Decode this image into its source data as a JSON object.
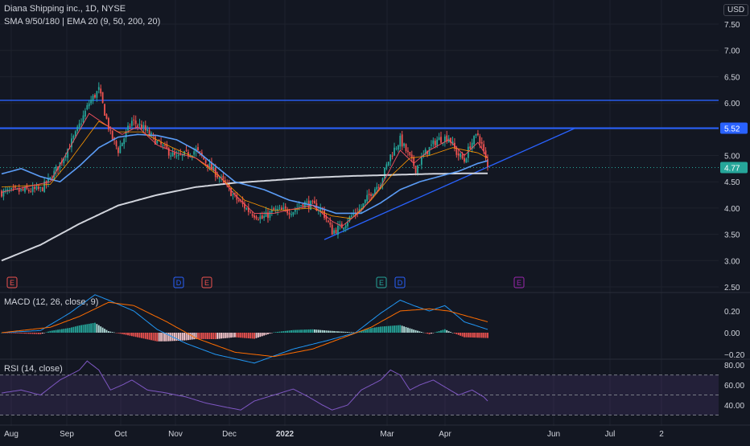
{
  "colors": {
    "background": "#131722",
    "text": "#d1d4dc",
    "grid": "#1e222d",
    "bull": "#26a69a",
    "bear": "#ef5350",
    "sma9": "#f7525f",
    "sma50": "#5b9cf6",
    "sma180": "#d1d4dc",
    "ema20": "#ff9800",
    "level_line": "#2962ff",
    "macd": "#2196f3",
    "signal": "#ff6d00",
    "rsi": "#7e57c2"
  },
  "header": {
    "title": "Diana Shipping inc., 1D, NYSE",
    "indicators": "SMA 9/50/180 | EMA 20 (9, 50, 200, 20)",
    "currency": "USD"
  },
  "price_labels": {
    "resistance": "5.52",
    "last": "4.77"
  },
  "x_labels": [
    "Aug",
    "Sep",
    "Oct",
    "Nov",
    "Dec",
    "2022",
    "Mar",
    "Apr",
    "Jun",
    "Jul",
    "2"
  ],
  "events": [
    {
      "label": "E",
      "color": "#ef5350"
    },
    {
      "label": "D",
      "color": "#2962ff"
    },
    {
      "label": "E",
      "color": "#ef5350"
    },
    {
      "label": "E",
      "color": "#26a69a"
    },
    {
      "label": "D",
      "color": "#2962ff"
    },
    {
      "label": "E",
      "color": "#9c27b0"
    }
  ],
  "macd_panel": {
    "title": "MACD (12, 26, close, 9)"
  },
  "rsi_panel": {
    "title": "RSI (14, close)"
  },
  "chart_data": [
    {
      "type": "candlestick",
      "title": "Diana Shipping inc., 1D, NYSE",
      "ylim": [
        2.5,
        7.5
      ],
      "yticks": [
        "7.50",
        "7.00",
        "6.50",
        "6.00",
        "5.50",
        "5.00",
        "4.50",
        "4.00",
        "3.50",
        "3.00",
        "2.50"
      ],
      "ytick_values": [
        7.5,
        7.0,
        6.5,
        6.0,
        5.5,
        5.0,
        4.5,
        4.0,
        3.5,
        3.0,
        2.5
      ],
      "close_anchors": [
        [
          0,
          4.3
        ],
        [
          20,
          4.35
        ],
        [
          25,
          4.55
        ],
        [
          30,
          4.85
        ],
        [
          38,
          5.4
        ],
        [
          45,
          6.0
        ],
        [
          50,
          6.25
        ],
        [
          56,
          5.4
        ],
        [
          60,
          5.1
        ],
        [
          67,
          5.65
        ],
        [
          72,
          5.55
        ],
        [
          80,
          5.25
        ],
        [
          90,
          4.95
        ],
        [
          100,
          5.1
        ],
        [
          108,
          4.75
        ],
        [
          115,
          4.45
        ],
        [
          120,
          4.2
        ],
        [
          127,
          3.95
        ],
        [
          134,
          3.8
        ],
        [
          140,
          3.95
        ],
        [
          150,
          3.95
        ],
        [
          155,
          4.1
        ],
        [
          160,
          4.05
        ],
        [
          165,
          3.95
        ],
        [
          170,
          3.55
        ],
        [
          175,
          3.65
        ],
        [
          180,
          3.85
        ],
        [
          185,
          4.0
        ],
        [
          190,
          4.3
        ],
        [
          195,
          4.5
        ],
        [
          200,
          5.0
        ],
        [
          205,
          5.3
        ],
        [
          210,
          4.95
        ],
        [
          213,
          4.75
        ],
        [
          218,
          5.05
        ],
        [
          224,
          5.3
        ],
        [
          230,
          5.35
        ],
        [
          234,
          5.05
        ],
        [
          238,
          4.9
        ],
        [
          241,
          5.2
        ],
        [
          245,
          5.4
        ],
        [
          247,
          5.2
        ],
        [
          250,
          4.77
        ]
      ],
      "sma9_anchors": [
        [
          0,
          4.3
        ],
        [
          25,
          4.5
        ],
        [
          32,
          4.95
        ],
        [
          45,
          5.8
        ],
        [
          55,
          5.55
        ],
        [
          62,
          5.4
        ],
        [
          70,
          5.55
        ],
        [
          80,
          5.2
        ],
        [
          90,
          5.05
        ],
        [
          100,
          4.95
        ],
        [
          110,
          4.7
        ],
        [
          120,
          4.25
        ],
        [
          130,
          3.9
        ],
        [
          140,
          3.9
        ],
        [
          150,
          3.98
        ],
        [
          160,
          4.05
        ],
        [
          170,
          3.75
        ],
        [
          175,
          3.65
        ],
        [
          185,
          3.95
        ],
        [
          195,
          4.4
        ],
        [
          205,
          5.1
        ],
        [
          212,
          4.85
        ],
        [
          220,
          5.1
        ],
        [
          230,
          5.3
        ],
        [
          238,
          5.0
        ],
        [
          245,
          5.25
        ],
        [
          250,
          4.95
        ]
      ],
      "ema20_anchors": [
        [
          0,
          4.4
        ],
        [
          25,
          4.45
        ],
        [
          35,
          4.9
        ],
        [
          50,
          5.65
        ],
        [
          60,
          5.45
        ],
        [
          72,
          5.45
        ],
        [
          85,
          5.2
        ],
        [
          100,
          4.95
        ],
        [
          112,
          4.6
        ],
        [
          125,
          4.15
        ],
        [
          140,
          3.95
        ],
        [
          160,
          4.0
        ],
        [
          170,
          3.85
        ],
        [
          180,
          3.8
        ],
        [
          190,
          4.15
        ],
        [
          200,
          4.6
        ],
        [
          210,
          4.95
        ],
        [
          220,
          5.0
        ],
        [
          232,
          5.15
        ],
        [
          245,
          5.05
        ],
        [
          250,
          4.95
        ]
      ],
      "sma50_anchors": [
        [
          0,
          4.65
        ],
        [
          10,
          4.75
        ],
        [
          20,
          4.6
        ],
        [
          30,
          4.5
        ],
        [
          40,
          4.8
        ],
        [
          50,
          5.15
        ],
        [
          60,
          5.35
        ],
        [
          70,
          5.4
        ],
        [
          80,
          5.38
        ],
        [
          90,
          5.3
        ],
        [
          100,
          5.1
        ],
        [
          110,
          4.8
        ],
        [
          120,
          4.5
        ],
        [
          135,
          4.35
        ],
        [
          148,
          4.15
        ],
        [
          160,
          4.05
        ],
        [
          172,
          3.9
        ],
        [
          185,
          3.9
        ],
        [
          195,
          4.1
        ],
        [
          205,
          4.35
        ],
        [
          215,
          4.5
        ],
        [
          225,
          4.6
        ],
        [
          235,
          4.7
        ],
        [
          245,
          4.85
        ],
        [
          250,
          4.9
        ]
      ],
      "sma180_anchors": [
        [
          0,
          3.0
        ],
        [
          20,
          3.3
        ],
        [
          40,
          3.7
        ],
        [
          60,
          4.05
        ],
        [
          80,
          4.25
        ],
        [
          100,
          4.4
        ],
        [
          120,
          4.48
        ],
        [
          140,
          4.53
        ],
        [
          160,
          4.58
        ],
        [
          180,
          4.61
        ],
        [
          200,
          4.63
        ],
        [
          220,
          4.65
        ],
        [
          240,
          4.66
        ],
        [
          250,
          4.66
        ]
      ],
      "horizontal_levels": [
        6.05,
        5.52
      ],
      "trendline": {
        "from": [
          166,
          3.4
        ],
        "to": [
          295,
          5.52
        ]
      },
      "last_price": 4.77,
      "bars": 251
    },
    {
      "type": "line",
      "title": "MACD (12, 26, close, 9)",
      "ylim": [
        -0.2,
        0.35
      ],
      "yticks": [
        "0.20",
        "0.00",
        "−0.20"
      ],
      "ytick_values": [
        0.2,
        0.0,
        -0.2
      ],
      "macd_anchors": [
        [
          0,
          0.0
        ],
        [
          20,
          0.02
        ],
        [
          35,
          0.18
        ],
        [
          48,
          0.35
        ],
        [
          55,
          0.3
        ],
        [
          68,
          0.2
        ],
        [
          80,
          0.03
        ],
        [
          95,
          -0.1
        ],
        [
          110,
          -0.2
        ],
        [
          130,
          -0.28
        ],
        [
          150,
          -0.15
        ],
        [
          168,
          -0.07
        ],
        [
          182,
          0.0
        ],
        [
          195,
          0.18
        ],
        [
          205,
          0.3
        ],
        [
          212,
          0.25
        ],
        [
          220,
          0.2
        ],
        [
          228,
          0.25
        ],
        [
          238,
          0.1
        ],
        [
          250,
          0.03
        ]
      ],
      "signal_anchors": [
        [
          0,
          0.0
        ],
        [
          25,
          0.05
        ],
        [
          40,
          0.15
        ],
        [
          55,
          0.28
        ],
        [
          68,
          0.25
        ],
        [
          85,
          0.1
        ],
        [
          100,
          -0.05
        ],
        [
          120,
          -0.18
        ],
        [
          140,
          -0.22
        ],
        [
          160,
          -0.15
        ],
        [
          175,
          -0.05
        ],
        [
          190,
          0.05
        ],
        [
          205,
          0.2
        ],
        [
          220,
          0.22
        ],
        [
          230,
          0.2
        ],
        [
          250,
          0.1
        ]
      ]
    },
    {
      "type": "line",
      "title": "RSI (14, close)",
      "ylim": [
        30,
        85
      ],
      "yticks": [
        "80.00",
        "60.00",
        "40.00"
      ],
      "ytick_values": [
        80,
        60,
        40
      ],
      "band": [
        30,
        70
      ],
      "midline": 50,
      "rsi_anchors": [
        [
          0,
          52
        ],
        [
          10,
          55
        ],
        [
          20,
          50
        ],
        [
          30,
          65
        ],
        [
          40,
          75
        ],
        [
          44,
          84
        ],
        [
          50,
          75
        ],
        [
          56,
          55
        ],
        [
          62,
          60
        ],
        [
          67,
          65
        ],
        [
          75,
          55
        ],
        [
          85,
          52
        ],
        [
          95,
          48
        ],
        [
          105,
          42
        ],
        [
          115,
          38
        ],
        [
          123,
          35
        ],
        [
          130,
          44
        ],
        [
          140,
          50
        ],
        [
          150,
          56
        ],
        [
          158,
          48
        ],
        [
          165,
          40
        ],
        [
          170,
          35
        ],
        [
          178,
          40
        ],
        [
          185,
          55
        ],
        [
          195,
          65
        ],
        [
          200,
          75
        ],
        [
          205,
          70
        ],
        [
          210,
          55
        ],
        [
          215,
          60
        ],
        [
          222,
          65
        ],
        [
          228,
          58
        ],
        [
          235,
          50
        ],
        [
          242,
          55
        ],
        [
          248,
          48
        ],
        [
          250,
          44
        ]
      ]
    }
  ]
}
